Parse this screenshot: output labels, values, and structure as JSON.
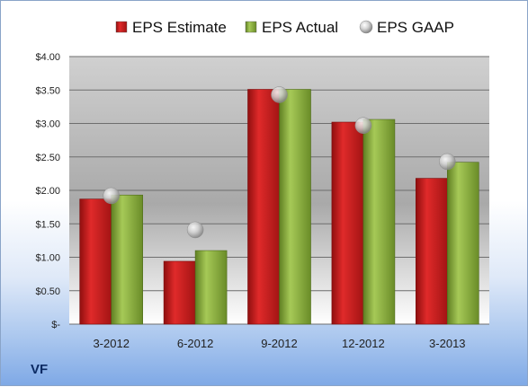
{
  "ticker": "VF",
  "chart_data": {
    "type": "bar",
    "categories": [
      "3-2012",
      "6-2012",
      "9-2012",
      "12-2012",
      "3-2013"
    ],
    "series": [
      {
        "name": "EPS Estimate",
        "type": "bar",
        "color": "#cc1f1f",
        "values": [
          1.87,
          0.94,
          3.51,
          3.02,
          2.18
        ]
      },
      {
        "name": "EPS Actual",
        "type": "bar",
        "color": "#8fb23a",
        "values": [
          1.93,
          1.1,
          3.51,
          3.06,
          2.42
        ]
      },
      {
        "name": "EPS GAAP",
        "type": "marker",
        "color": "#b8b8b8",
        "values": [
          1.92,
          1.41,
          3.43,
          2.97,
          2.43
        ]
      }
    ],
    "yticks": [
      "$-",
      "$0.50",
      "$1.00",
      "$1.50",
      "$2.00",
      "$2.50",
      "$3.00",
      "$3.50",
      "$4.00"
    ],
    "ylim": [
      0,
      4
    ],
    "grid": true,
    "legend_position": "top"
  }
}
